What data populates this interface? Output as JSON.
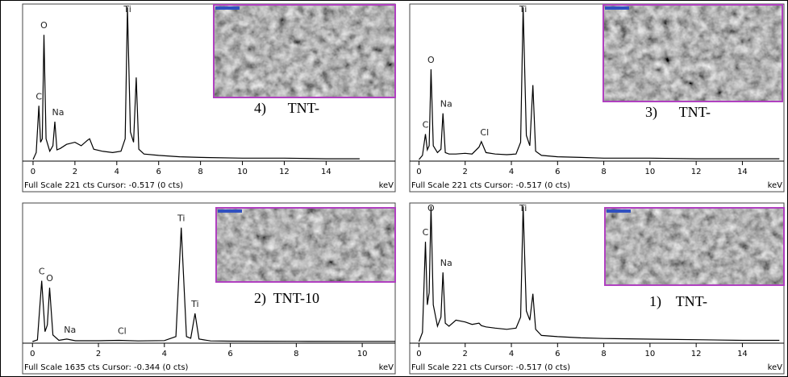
{
  "chart_data": [
    {
      "type": "line",
      "title": "4)      TNT-",
      "footer": "Full Scale 221 cts Cursor: -0.517  (0 cts)",
      "x_label": "keV",
      "xlim": [
        -0.5,
        17.3
      ],
      "xticks": [
        0,
        2,
        4,
        6,
        8,
        10,
        12,
        14
      ],
      "ylim": [
        0,
        221
      ],
      "x": [
        0,
        0.15,
        0.28,
        0.36,
        0.44,
        0.52,
        0.62,
        0.8,
        0.95,
        1.04,
        1.14,
        1.3,
        1.6,
        2.0,
        2.3,
        2.6,
        2.7,
        2.9,
        3.3,
        3.8,
        4.2,
        4.4,
        4.51,
        4.65,
        4.8,
        4.93,
        5.05,
        5.3,
        6,
        7,
        8,
        10,
        12,
        14,
        15.6
      ],
      "series": [
        {
          "color": "#000000",
          "values": [
            0,
            10,
            78,
            25,
            30,
            181,
            30,
            12,
            20,
            55,
            14,
            16,
            22,
            25,
            20,
            28,
            30,
            15,
            12,
            10,
            12,
            30,
            221,
            40,
            25,
            119,
            15,
            8,
            6,
            4,
            3,
            2,
            2,
            1,
            1
          ]
        }
      ],
      "annotations": [
        {
          "text": "C",
          "x": 0.28
        },
        {
          "text": "O",
          "x": 0.52
        },
        {
          "text": "Na",
          "x": 1.04
        },
        {
          "text": "Ti",
          "x": 4.51
        }
      ]
    },
    {
      "type": "line",
      "title": "3)      TNT-",
      "footer": "Full Scale 221 cts Cursor: -0.517  (0 cts)",
      "x_label": "keV",
      "xlim": [
        -0.4,
        15.8
      ],
      "xticks": [
        0,
        2,
        4,
        6,
        8,
        10,
        12,
        14
      ],
      "ylim": [
        0,
        221
      ],
      "x": [
        0,
        0.15,
        0.28,
        0.36,
        0.44,
        0.52,
        0.62,
        0.8,
        0.95,
        1.04,
        1.14,
        1.3,
        1.6,
        2.0,
        2.3,
        2.6,
        2.7,
        2.9,
        3.3,
        3.8,
        4.2,
        4.4,
        4.51,
        4.65,
        4.8,
        4.93,
        5.05,
        5.3,
        6,
        7,
        8,
        10,
        12,
        14,
        15.6
      ],
      "series": [
        {
          "color": "#000000",
          "values": [
            0,
            6,
            37,
            14,
            20,
            131,
            20,
            10,
            15,
            67,
            10,
            8,
            8,
            9,
            8,
            18,
            26,
            10,
            8,
            7,
            8,
            25,
            221,
            35,
            20,
            108,
            12,
            6,
            4,
            3,
            2,
            2,
            1,
            1,
            1
          ]
        }
      ],
      "annotations": [
        {
          "text": "C",
          "x": 0.28
        },
        {
          "text": "O",
          "x": 0.52
        },
        {
          "text": "Na",
          "x": 1.04
        },
        {
          "text": "Cl",
          "x": 2.7
        },
        {
          "text": "Ti",
          "x": 4.51
        }
      ]
    },
    {
      "type": "line",
      "title": "2)  TNT-10",
      "footer": "Full Scale 1635 cts Cursor: -0.344  (0 cts)",
      "x_label": "keV",
      "xlim": [
        -0.3,
        11
      ],
      "xticks": [
        0,
        2,
        4,
        6,
        8,
        10
      ],
      "ylim": [
        0,
        1635
      ],
      "x": [
        0,
        0.15,
        0.28,
        0.38,
        0.45,
        0.52,
        0.62,
        0.8,
        1.04,
        1.3,
        2.0,
        2.62,
        3.2,
        4.0,
        4.35,
        4.51,
        4.67,
        4.8,
        4.93,
        5.05,
        5.4,
        6,
        8,
        10,
        11
      ],
      "series": [
        {
          "color": "#000000",
          "values": [
            0,
            20,
            735,
            120,
            200,
            650,
            80,
            15,
            30,
            10,
            10,
            15,
            8,
            12,
            60,
            1375,
            60,
            40,
            340,
            30,
            8,
            5,
            3,
            2,
            2
          ]
        }
      ],
      "annotations": [
        {
          "text": "C",
          "x": 0.28
        },
        {
          "text": "O",
          "x": 0.52
        },
        {
          "text": "Na",
          "x": 1.04
        },
        {
          "text": "Cl",
          "x": 2.62
        },
        {
          "text": "Ti",
          "x": 4.51
        },
        {
          "text": "Ti",
          "x": 4.93
        }
      ]
    },
    {
      "type": "line",
      "title": "1)    TNT-",
      "footer": "Full Scale 221 cts Cursor: -0.517  (0 cts)",
      "x_label": "keV",
      "xlim": [
        -0.4,
        15.8
      ],
      "xticks": [
        0,
        2,
        4,
        6,
        8,
        10,
        12,
        14
      ],
      "ylim": [
        0,
        221
      ],
      "x": [
        0,
        0.15,
        0.28,
        0.36,
        0.44,
        0.52,
        0.62,
        0.8,
        0.95,
        1.04,
        1.14,
        1.3,
        1.6,
        2.0,
        2.3,
        2.6,
        2.7,
        2.9,
        3.3,
        3.8,
        4.2,
        4.4,
        4.51,
        4.65,
        4.8,
        4.93,
        5.05,
        5.3,
        6,
        7,
        8,
        10,
        12,
        14,
        15.6
      ],
      "series": [
        {
          "color": "#000000",
          "values": [
            0,
            15,
            163,
            60,
            80,
            221,
            60,
            25,
            40,
            113,
            30,
            25,
            35,
            32,
            28,
            30,
            26,
            24,
            22,
            20,
            22,
            40,
            221,
            50,
            35,
            78,
            20,
            10,
            8,
            6,
            5,
            4,
            3,
            2,
            2
          ]
        }
      ],
      "annotations": [
        {
          "text": "C",
          "x": 0.28
        },
        {
          "text": "O",
          "x": 0.52
        },
        {
          "text": "Na",
          "x": 1.04
        },
        {
          "text": "Ti",
          "x": 4.51
        }
      ]
    }
  ]
}
